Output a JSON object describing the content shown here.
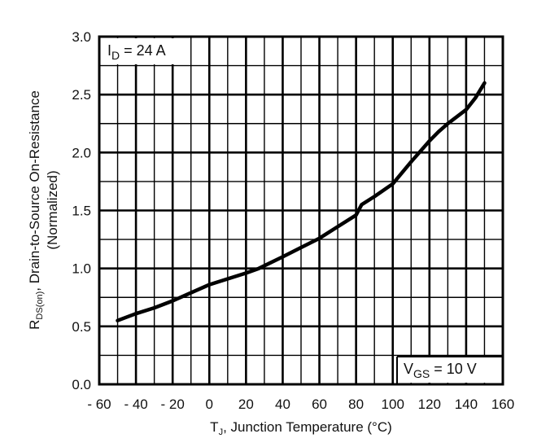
{
  "chart_data": {
    "type": "line",
    "xlabel_main": "T",
    "xlabel_sub": "J",
    "xlabel_rest": ", Junction Temperature (°C)",
    "ylabel_line1_main": "R",
    "ylabel_line1_sub": "DS(on)",
    "ylabel_line1_rest": ", Drain-to-Source On-Resistance",
    "ylabel_line2": "(Normalized)",
    "xlim": [
      -60,
      160
    ],
    "ylim": [
      0,
      3.0
    ],
    "x_ticks": [
      -60,
      -40,
      -20,
      0,
      20,
      40,
      60,
      80,
      100,
      120,
      140,
      160
    ],
    "x_tick_labels": [
      "- 60",
      "- 40",
      "- 20",
      "0",
      "20",
      "40",
      "60",
      "80",
      "100",
      "120",
      "140",
      "160"
    ],
    "y_ticks": [
      0,
      0.5,
      1.0,
      1.5,
      2.0,
      2.5,
      3.0
    ],
    "y_tick_labels": [
      "0.0",
      "0.5",
      "1.0",
      "1.5",
      "2.0",
      "2.5",
      "3.0"
    ],
    "grid": true,
    "grid_minor_x": 10,
    "grid_minor_y": 0.25,
    "annotations": [
      {
        "main": "I",
        "sub": "D",
        "rest": " = 24 A",
        "placement": "top-left"
      },
      {
        "main": "V",
        "sub": "GS",
        "rest": " = 10 V",
        "placement": "bottom-right"
      }
    ],
    "series": [
      {
        "x": [
          -50,
          -40,
          -30,
          -20,
          -10,
          0,
          10,
          20,
          27,
          40,
          50,
          60,
          70,
          80,
          83,
          90,
          100,
          110,
          120,
          125,
          130,
          140,
          145,
          150
        ],
        "y": [
          0.55,
          0.61,
          0.66,
          0.72,
          0.79,
          0.86,
          0.91,
          0.96,
          1.0,
          1.1,
          1.18,
          1.26,
          1.36,
          1.46,
          1.55,
          1.62,
          1.73,
          1.92,
          2.1,
          2.18,
          2.25,
          2.37,
          2.47,
          2.6
        ]
      }
    ],
    "line_color": "#000000"
  }
}
